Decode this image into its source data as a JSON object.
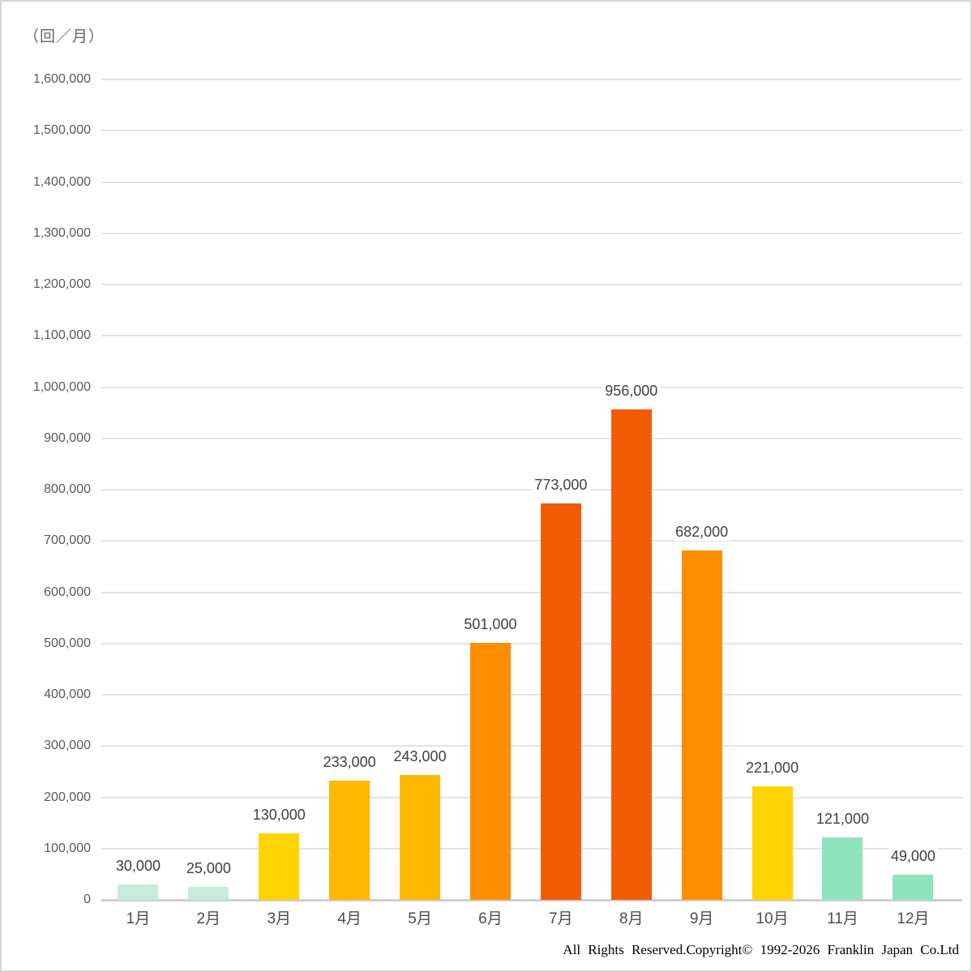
{
  "page": {
    "background": "#ffffff",
    "border_color": "#d5d5d5"
  },
  "footer": {
    "copyright": "All Rights Reserved.Copyright© 1992-2026 Franklin Japan Co.Ltd"
  },
  "chart_data": {
    "type": "bar",
    "title": "",
    "xlabel": "",
    "ylabel": "",
    "unit_label": "（回／月）",
    "ylim": [
      0,
      1600000
    ],
    "ytick_step": 100000,
    "grid": true,
    "legend": "none",
    "categories": [
      "1月",
      "2月",
      "3月",
      "4月",
      "5月",
      "6月",
      "7月",
      "8月",
      "9月",
      "10月",
      "11月",
      "12月"
    ],
    "values": [
      30000,
      25000,
      130000,
      233000,
      243000,
      501000,
      773000,
      956000,
      682000,
      221000,
      121000,
      49000
    ],
    "value_labels": [
      "30,000",
      "25,000",
      "130,000",
      "233,000",
      "243,000",
      "501,000",
      "773,000",
      "956,000",
      "682,000",
      "221,000",
      "121,000",
      "49,000"
    ],
    "bar_colors": [
      "#C8EBDB",
      "#C8EBDB",
      "#FFD400",
      "#FFB700",
      "#FFB700",
      "#FF8D00",
      "#F15C05",
      "#F15C05",
      "#FF8D00",
      "#FFD400",
      "#8DE4BF",
      "#8DE4BF"
    ],
    "ytick_labels": [
      "0",
      "100,000",
      "200,000",
      "300,000",
      "400,000",
      "500,000",
      "600,000",
      "700,000",
      "800,000",
      "900,000",
      "1,000,000",
      "1,100,000",
      "1,200,000",
      "1,300,000",
      "1,400,000",
      "1,500,000",
      "1,600,000"
    ],
    "gridline_color": "#e3e3e3",
    "baseline_color": "#cfcfcf",
    "tick_text_color": "#595959",
    "value_text_color": "#404040"
  }
}
